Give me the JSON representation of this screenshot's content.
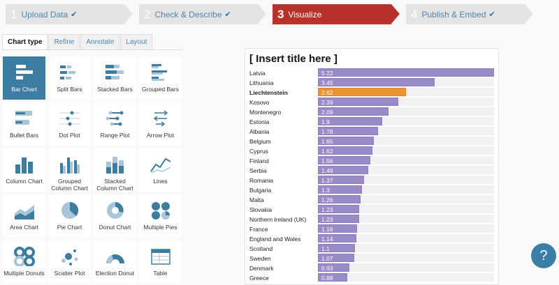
{
  "steps": [
    {
      "num": "1",
      "label": "Upload Data",
      "done": true
    },
    {
      "num": "2",
      "label": "Check & Describe",
      "done": true
    },
    {
      "num": "3",
      "label": "Visualize",
      "done": false,
      "active": true
    },
    {
      "num": "4",
      "label": "Publish & Embed",
      "done": true
    }
  ],
  "check_glyph": "✔",
  "tabs": [
    "Chart type",
    "Refine",
    "Annotate",
    "Layout"
  ],
  "chart_types": [
    {
      "label": "Bar Chart",
      "icon": "bar-chart-icon",
      "selected": true
    },
    {
      "label": "Split Bars",
      "icon": "split-bars-icon"
    },
    {
      "label": "Stacked Bars",
      "icon": "stacked-bars-icon"
    },
    {
      "label": "Grouped Bars",
      "icon": "grouped-bars-icon"
    },
    {
      "label": "Bullet Bars",
      "icon": "bullet-bars-icon"
    },
    {
      "label": "Dot Plot",
      "icon": "dot-plot-icon"
    },
    {
      "label": "Range Plot",
      "icon": "range-plot-icon"
    },
    {
      "label": "Arrow Plot",
      "icon": "arrow-plot-icon"
    },
    {
      "label": "Column Chart",
      "icon": "column-chart-icon"
    },
    {
      "label": "Grouped Column Chart",
      "icon": "grouped-column-icon"
    },
    {
      "label": "Stacked Column Chart",
      "icon": "stacked-column-icon"
    },
    {
      "label": "Lines",
      "icon": "lines-icon"
    },
    {
      "label": "Area Chart",
      "icon": "area-chart-icon"
    },
    {
      "label": "Pie Chart",
      "icon": "pie-chart-icon"
    },
    {
      "label": "Donut Chart",
      "icon": "donut-chart-icon"
    },
    {
      "label": "Multiple Pies",
      "icon": "multiple-pies-icon"
    },
    {
      "label": "Multiple Donuts",
      "icon": "multiple-donuts-icon"
    },
    {
      "label": "Scatter Plot",
      "icon": "scatter-plot-icon"
    },
    {
      "label": "Election Donut",
      "icon": "election-donut-icon"
    },
    {
      "label": "Table",
      "icon": "table-icon"
    }
  ],
  "colors": {
    "bar": "#9a8bc8",
    "highlight": "#ea9234",
    "accent": "#b8312a",
    "icon": "#3c7da1"
  },
  "chart_data": {
    "type": "bar",
    "title": "[ Insert title here ]",
    "xlim": [
      0,
      5.22
    ],
    "highlight": "Liechtenstein",
    "categories": [
      "Latvia",
      "Lithuania",
      "Liechtenstein",
      "Kosovo",
      "Montenegro",
      "Estonia",
      "Albania",
      "Belgium",
      "Cyprus",
      "Finland",
      "Serbia",
      "Romania",
      "Bulgaria",
      "Malta",
      "Slovakia",
      "Northern Ireland (UK)",
      "France",
      "England and Wales",
      "Scotland",
      "Sweden",
      "Denmark",
      "Greece"
    ],
    "values": [
      5.22,
      3.45,
      2.62,
      2.39,
      2.09,
      1.9,
      1.78,
      1.65,
      1.62,
      1.56,
      1.49,
      1.37,
      1.3,
      1.26,
      1.23,
      1.23,
      1.16,
      1.14,
      1.1,
      1.07,
      0.93,
      0.88
    ],
    "labels": [
      "5.22",
      "3.45",
      "2.62",
      "2.39",
      "2.09",
      "1.9",
      "1.78",
      "1.65",
      "1.62",
      "1.56",
      "1.49",
      "1.37",
      "1.3",
      "1.26",
      "1.23",
      "1.23",
      "1.16",
      "1.14",
      "1.1",
      "1.07",
      "0.93",
      "0.88"
    ]
  },
  "help": {
    "label": "?"
  }
}
